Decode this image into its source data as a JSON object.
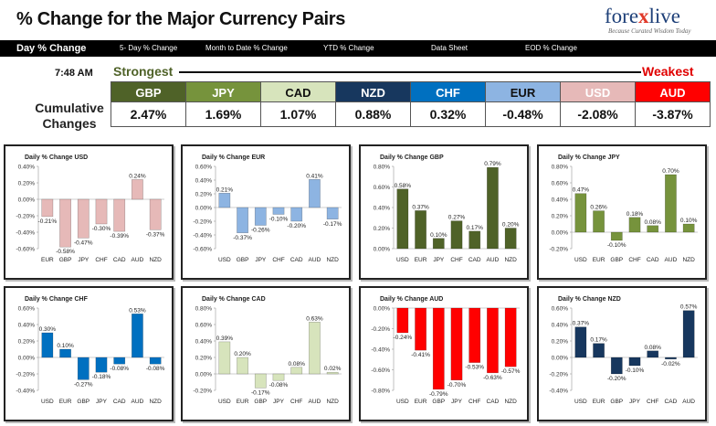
{
  "header": {
    "title": "% Change for the Major Currency Pairs",
    "logo_main_pre": "fore",
    "logo_main_x": "x",
    "logo_main_post": "live",
    "logo_sub": "Because Curated Wisdom Today"
  },
  "nav": [
    {
      "label": "Day % Change",
      "active": true
    },
    {
      "label": "5- Day % Change",
      "active": false
    },
    {
      "label": "Month to Date % Change",
      "active": false
    },
    {
      "label": "YTD % Change",
      "active": false
    },
    {
      "label": "Data Sheet",
      "active": false
    },
    {
      "label": "EOD % Change",
      "active": false
    }
  ],
  "summary": {
    "time": "7:48 AM",
    "strongest": "Strongest",
    "weakest": "Weakest",
    "cumulative_label_1": "Cumulative",
    "cumulative_label_2": "Changes",
    "tiles": [
      {
        "ccy": "GBP",
        "value": "2.47%",
        "bg": "#4f6228",
        "fg": "#ffffff"
      },
      {
        "ccy": "JPY",
        "value": "1.69%",
        "bg": "#76933c",
        "fg": "#ffffff"
      },
      {
        "ccy": "CAD",
        "value": "1.07%",
        "bg": "#d7e4bc",
        "fg": "#111111"
      },
      {
        "ccy": "NZD",
        "value": "0.88%",
        "bg": "#17375e",
        "fg": "#ffffff"
      },
      {
        "ccy": "CHF",
        "value": "0.32%",
        "bg": "#0070c0",
        "fg": "#ffffff"
      },
      {
        "ccy": "EUR",
        "value": "-0.48%",
        "bg": "#8db4e2",
        "fg": "#111111"
      },
      {
        "ccy": "USD",
        "value": "-2.08%",
        "bg": "#e6b9b8",
        "fg": "#ffffff"
      },
      {
        "ccy": "AUD",
        "value": "-3.87%",
        "bg": "#ff0000",
        "fg": "#ffffff"
      }
    ]
  },
  "chart_data": [
    {
      "type": "bar",
      "title": "Daily % Change USD",
      "categories": [
        "EUR",
        "GBP",
        "JPY",
        "CHF",
        "CAD",
        "AUD",
        "NZD"
      ],
      "values": [
        -0.21,
        -0.58,
        -0.47,
        -0.3,
        -0.39,
        0.24,
        -0.37
      ],
      "labels": [
        "-0.21%",
        "-0.58%",
        "-0.47%",
        "-0.30%",
        "-0.39%",
        "0.24%",
        "-0.37%"
      ],
      "ylim": [
        -0.6,
        0.4
      ],
      "ticks": [
        0.4,
        0.2,
        0.0,
        -0.2,
        -0.4,
        -0.6
      ],
      "tick_labels": [
        "0.40%",
        "0.20%",
        "0.00%",
        "-0.20%",
        "-0.40%",
        "-0.60%"
      ],
      "color": "#e6b9b8"
    },
    {
      "type": "bar",
      "title": "Daily % Change EUR",
      "categories": [
        "USD",
        "GBP",
        "JPY",
        "CHF",
        "CAD",
        "AUD",
        "NZD"
      ],
      "values": [
        0.21,
        -0.37,
        -0.26,
        -0.1,
        -0.2,
        0.41,
        -0.17
      ],
      "labels": [
        "0.21%",
        "-0.37%",
        "-0.26%",
        "-0.10%",
        "-0.20%",
        "0.41%",
        "-0.17%"
      ],
      "ylim": [
        -0.6,
        0.6
      ],
      "ticks": [
        0.6,
        0.4,
        0.2,
        0.0,
        -0.2,
        -0.4,
        -0.6
      ],
      "tick_labels": [
        "0.60%",
        "0.40%",
        "0.20%",
        "0.00%",
        "-0.20%",
        "-0.40%",
        "-0.60%"
      ],
      "color": "#8db4e2"
    },
    {
      "type": "bar",
      "title": "Daily % Change GBP",
      "categories": [
        "USD",
        "EUR",
        "JPY",
        "CHF",
        "CAD",
        "AUD",
        "NZD"
      ],
      "values": [
        0.58,
        0.37,
        0.1,
        0.27,
        0.17,
        0.79,
        0.2
      ],
      "labels": [
        "0.58%",
        "0.37%",
        "0.10%",
        "0.27%",
        "0.17%",
        "0.79%",
        "0.20%"
      ],
      "ylim": [
        0,
        0.8
      ],
      "ticks": [
        0.8,
        0.6,
        0.4,
        0.2,
        0.0
      ],
      "tick_labels": [
        "0.80%",
        "0.60%",
        "0.40%",
        "0.20%",
        "0.00%"
      ],
      "color": "#4f6228"
    },
    {
      "type": "bar",
      "title": "Daily % Change JPY",
      "categories": [
        "USD",
        "EUR",
        "GBP",
        "CHF",
        "CAD",
        "AUD",
        "NZD"
      ],
      "values": [
        0.47,
        0.26,
        -0.1,
        0.18,
        0.08,
        0.7,
        0.1
      ],
      "labels": [
        "0.47%",
        "0.26%",
        "-0.10%",
        "0.18%",
        "0.08%",
        "0.70%",
        "0.10%"
      ],
      "ylim": [
        -0.2,
        0.8
      ],
      "ticks": [
        0.8,
        0.6,
        0.4,
        0.2,
        0.0,
        -0.2
      ],
      "tick_labels": [
        "0.80%",
        "0.60%",
        "0.40%",
        "0.20%",
        "0.00%",
        "-0.20%"
      ],
      "color": "#76933c"
    },
    {
      "type": "bar",
      "title": "Daily % Change CHF",
      "categories": [
        "USD",
        "EUR",
        "GBP",
        "JPY",
        "CAD",
        "AUD",
        "NZD"
      ],
      "values": [
        0.3,
        0.1,
        -0.27,
        -0.18,
        -0.08,
        0.53,
        -0.08
      ],
      "labels": [
        "0.30%",
        "0.10%",
        "-0.27%",
        "-0.18%",
        "-0.08%",
        "0.53%",
        "-0.08%"
      ],
      "ylim": [
        -0.4,
        0.6
      ],
      "ticks": [
        0.6,
        0.4,
        0.2,
        0.0,
        -0.2,
        -0.4
      ],
      "tick_labels": [
        "0.60%",
        "0.40%",
        "0.20%",
        "0.00%",
        "-0.20%",
        "-0.40%"
      ],
      "color": "#0070c0"
    },
    {
      "type": "bar",
      "title": "Daily % Change CAD",
      "categories": [
        "USD",
        "EUR",
        "GBP",
        "JPY",
        "CHF",
        "AUD",
        "NZD"
      ],
      "values": [
        0.39,
        0.2,
        -0.17,
        -0.08,
        0.08,
        0.63,
        0.02
      ],
      "labels": [
        "0.39%",
        "0.20%",
        "-0.17%",
        "-0.08%",
        "0.08%",
        "0.63%",
        "0.02%"
      ],
      "ylim": [
        -0.2,
        0.8
      ],
      "ticks": [
        0.8,
        0.6,
        0.4,
        0.2,
        0.0,
        -0.2
      ],
      "tick_labels": [
        "0.80%",
        "0.60%",
        "0.40%",
        "0.20%",
        "0.00%",
        "-0.20%"
      ],
      "color": "#d7e4bc"
    },
    {
      "type": "bar",
      "title": "Daily % Change AUD",
      "categories": [
        "USD",
        "EUR",
        "GBP",
        "JPY",
        "CHF",
        "CAD",
        "NZD"
      ],
      "values": [
        -0.24,
        -0.41,
        -0.79,
        -0.7,
        -0.53,
        -0.63,
        -0.57
      ],
      "labels": [
        "-0.24%",
        "-0.41%",
        "-0.79%",
        "-0.70%",
        "-0.53%",
        "-0.63%",
        "-0.57%"
      ],
      "ylim": [
        -0.8,
        0.0
      ],
      "ticks": [
        0.0,
        -0.2,
        -0.4,
        -0.6,
        -0.8
      ],
      "tick_labels": [
        "0.00%",
        "-0.20%",
        "-0.40%",
        "-0.60%",
        "-0.80%"
      ],
      "color": "#ff0000"
    },
    {
      "type": "bar",
      "title": "Daily % Change NZD",
      "categories": [
        "USD",
        "EUR",
        "GBP",
        "JPY",
        "CHF",
        "CAD",
        "AUD"
      ],
      "values": [
        0.37,
        0.17,
        -0.2,
        -0.1,
        0.08,
        -0.02,
        0.57
      ],
      "labels": [
        "0.37%",
        "0.17%",
        "-0.20%",
        "-0.10%",
        "0.08%",
        "-0.02%",
        "0.57%"
      ],
      "ylim": [
        -0.4,
        0.6
      ],
      "ticks": [
        0.6,
        0.4,
        0.2,
        0.0,
        -0.2,
        -0.4
      ],
      "tick_labels": [
        "0.60%",
        "0.40%",
        "0.20%",
        "0.00%",
        "-0.20%",
        "-0.40%"
      ],
      "color": "#17375e"
    }
  ]
}
